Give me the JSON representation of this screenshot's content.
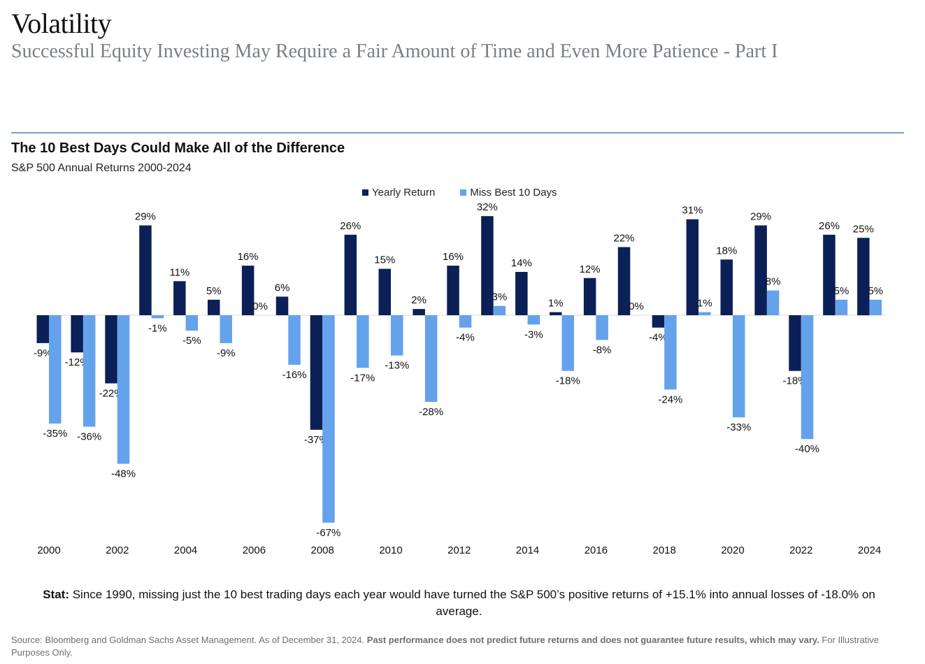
{
  "header": {
    "title": "Volatility",
    "subtitle": "Successful Equity Investing May Require a Fair Amount of Time and Even More Patience - Part I"
  },
  "chart_heading": {
    "title": "The 10 Best Days Could Make All of the Difference",
    "subtitle": "S&P 500 Annual Returns 2000-2024"
  },
  "colors": {
    "yearly": "#0b2057",
    "miss": "#65a2ec",
    "rule": "#6fa3da"
  },
  "chart_data": {
    "type": "bar",
    "title": "The 10 Best Days Could Make All of the Difference",
    "subtitle": "S&P 500 Annual Returns 2000-2024",
    "categories": [
      "2000",
      "2001",
      "2002",
      "2003",
      "2004",
      "2005",
      "2006",
      "2007",
      "2008",
      "2009",
      "2010",
      "2011",
      "2012",
      "2013",
      "2014",
      "2015",
      "2016",
      "2017",
      "2018",
      "2019",
      "2020",
      "2021",
      "2022",
      "2023",
      "2024"
    ],
    "tick_labels": [
      "2000",
      "",
      "2002",
      "",
      "2004",
      "",
      "2006",
      "",
      "2008",
      "",
      "2010",
      "",
      "2012",
      "",
      "2014",
      "",
      "2016",
      "",
      "2018",
      "",
      "2020",
      "",
      "2022",
      "",
      "2024"
    ],
    "series": [
      {
        "name": "Yearly Return",
        "values": [
          -9,
          -12,
          -22,
          29,
          11,
          5,
          16,
          6,
          -37,
          26,
          15,
          2,
          16,
          32,
          14,
          1,
          12,
          22,
          -4,
          31,
          18,
          29,
          -18,
          26,
          25
        ]
      },
      {
        "name": "Miss Best 10 Days",
        "values": [
          -35,
          -36,
          -48,
          -1,
          -5,
          -9,
          0,
          -16,
          -67,
          -17,
          -13,
          -28,
          -4,
          3,
          -3,
          -18,
          -8,
          0,
          -24,
          1,
          -33,
          8,
          -40,
          5,
          5
        ]
      }
    ],
    "data_labels": [
      [
        "-9%",
        "-12%",
        "-22%",
        "29%",
        "11%",
        "5%",
        "16%",
        "6%",
        "-37%",
        "26%",
        "15%",
        "2%",
        "16%",
        "32%",
        "14%",
        "1%",
        "12%",
        "22%",
        "-4%",
        "31%",
        "18%",
        "29%",
        "-18%",
        "26%",
        "25%"
      ],
      [
        "-35%",
        "-36%",
        "-48%",
        "-1%",
        "-5%",
        "-9%",
        "0%",
        "-16%",
        "-67%",
        "-17%",
        "-13%",
        "-28%",
        "-4%",
        "3%",
        "-3%",
        "-18%",
        "-8%",
        "0%",
        "-24%",
        "1%",
        "-33%",
        "8%",
        "-40%",
        "5%",
        "5%"
      ]
    ],
    "legend_position": "top-center",
    "grid": false
  },
  "legend": {
    "yearly_label": "Yearly Return",
    "miss_label": "Miss Best 10 Days"
  },
  "stat": {
    "label": "Stat:",
    "text": " Since 1990, missing just the 10 best trading days each year would have turned the S&P 500’s positive returns of +15.1% into annual losses of -18.0% on average."
  },
  "source": {
    "text": "Source: Bloomberg and Goldman Sachs Asset Management. As of December 31, 2024. ",
    "bold": "Past performance does not predict future returns and does not guarantee future results, which may vary.",
    "tail": " For Illustrative Purposes Only."
  }
}
